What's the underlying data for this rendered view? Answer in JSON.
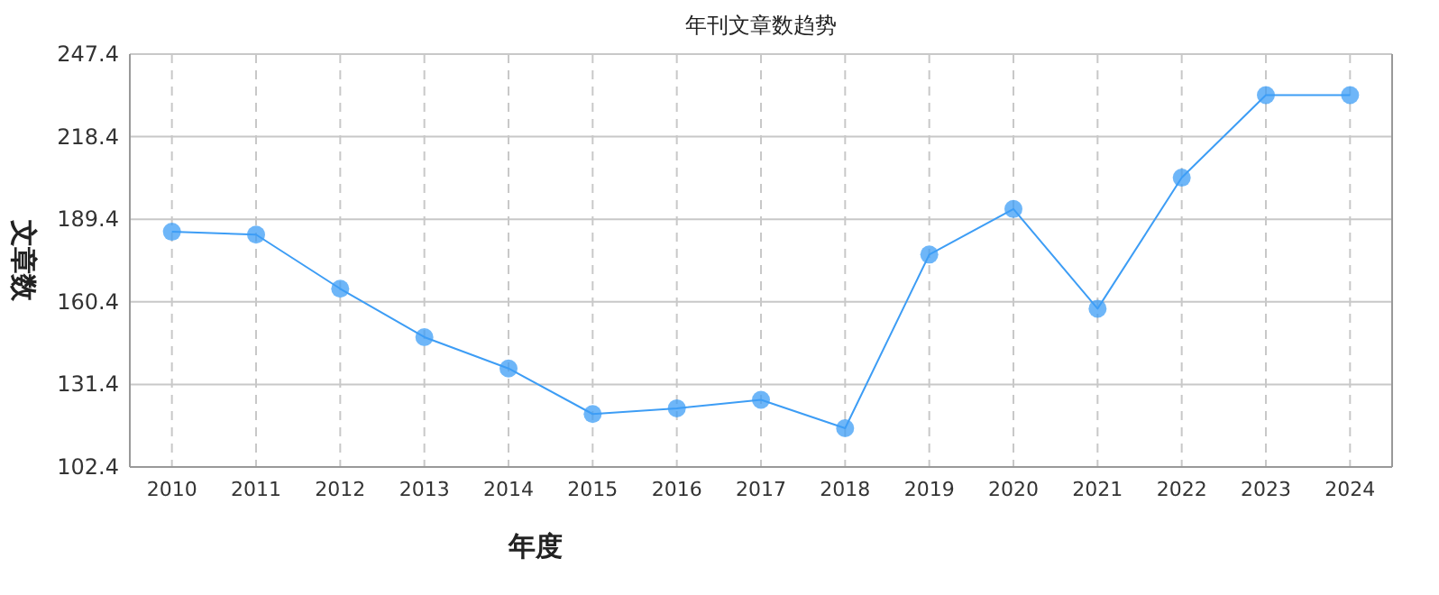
{
  "chart_data": {
    "type": "line",
    "title": "年刊文章数趋势",
    "xlabel": "年度",
    "ylabel": "文章数",
    "categories": [
      "2010",
      "2011",
      "2012",
      "2013",
      "2014",
      "2015",
      "2016",
      "2017",
      "2018",
      "2019",
      "2020",
      "2021",
      "2022",
      "2023",
      "2024"
    ],
    "values": [
      185,
      184,
      165,
      148,
      137,
      121,
      123,
      126,
      116,
      177,
      193,
      158,
      204,
      233,
      233
    ],
    "color": "#3d9df5",
    "ylim": [
      102.4,
      247.4
    ],
    "yticks": [
      102.4,
      131.4,
      160.4,
      189.4,
      218.4,
      247.4
    ],
    "grid": true,
    "marker": "circle"
  }
}
